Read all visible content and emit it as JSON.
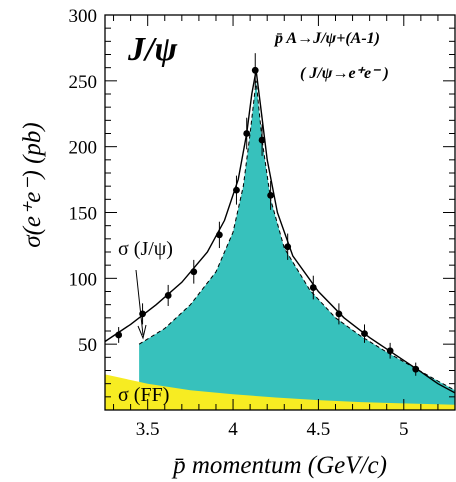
{
  "chart_data": {
    "type": "area",
    "plot_label": "J/ψ",
    "reaction_html": "p̄ A→J/ψ+(A-1)",
    "decay_label": "( J/ψ→e⁺e⁻ )",
    "ylabel": "σ(e⁺e⁻) (pb)",
    "xlabel": "p̄  momentum (GeV/c)",
    "xlim": [
      3.25,
      5.3
    ],
    "ylim": [
      0,
      300
    ],
    "xticks": [
      3.5,
      4,
      4.5,
      5
    ],
    "xtick_labels": [
      "3.5",
      "4",
      "4.5",
      "5"
    ],
    "yticks": [
      50,
      100,
      150,
      200,
      250,
      300
    ],
    "ytick_labels": [
      "50",
      "100",
      "150",
      "200",
      "250",
      "300"
    ],
    "annotations": {
      "sigma_jpsi": "σ (J/ψ)",
      "sigma_ff": "σ (FF)"
    },
    "series": [
      {
        "kind": "data_points_with_errors",
        "points": [
          {
            "x": 3.33,
            "y": 57,
            "err": 6
          },
          {
            "x": 3.47,
            "y": 73,
            "err": 8
          },
          {
            "x": 3.62,
            "y": 87,
            "err": 8
          },
          {
            "x": 3.77,
            "y": 105,
            "err": 9
          },
          {
            "x": 3.92,
            "y": 133,
            "err": 10
          },
          {
            "x": 4.02,
            "y": 167,
            "err": 11
          },
          {
            "x": 4.08,
            "y": 210,
            "err": 12
          },
          {
            "x": 4.13,
            "y": 258,
            "err": 13
          },
          {
            "x": 4.17,
            "y": 205,
            "err": 12
          },
          {
            "x": 4.22,
            "y": 163,
            "err": 11
          },
          {
            "x": 4.32,
            "y": 124,
            "err": 10
          },
          {
            "x": 4.47,
            "y": 93,
            "err": 9
          },
          {
            "x": 4.62,
            "y": 73,
            "err": 8
          },
          {
            "x": 4.77,
            "y": 58,
            "err": 7
          },
          {
            "x": 4.92,
            "y": 45,
            "err": 6
          },
          {
            "x": 5.07,
            "y": 31,
            "err": 5
          }
        ]
      },
      {
        "kind": "total_curve",
        "x": [
          3.25,
          3.4,
          3.55,
          3.7,
          3.85,
          3.95,
          4.03,
          4.08,
          4.11,
          4.135,
          4.16,
          4.2,
          4.26,
          4.35,
          4.5,
          4.65,
          4.8,
          4.95,
          5.1,
          5.2,
          5.3
        ],
        "y": [
          52,
          65,
          80,
          97,
          120,
          144,
          175,
          210,
          240,
          258,
          232,
          190,
          150,
          117,
          90,
          70,
          55,
          42,
          29,
          20,
          13
        ]
      },
      {
        "kind": "jpsi_area",
        "x": [
          3.45,
          3.6,
          3.75,
          3.9,
          4.0,
          4.06,
          4.1,
          4.135,
          4.17,
          4.22,
          4.3,
          4.45,
          4.6,
          4.75,
          4.9,
          5.05,
          5.2,
          5.3
        ],
        "y": [
          50,
          62,
          80,
          105,
          135,
          170,
          210,
          250,
          205,
          160,
          123,
          91,
          70,
          56,
          44,
          33,
          22,
          15
        ]
      },
      {
        "kind": "ff_background",
        "x": [
          3.25,
          3.5,
          3.75,
          4.0,
          4.25,
          4.5,
          4.75,
          5.0,
          5.3
        ],
        "y": [
          27,
          20,
          15,
          12,
          9.5,
          7.5,
          6,
          5,
          4
        ]
      }
    ],
    "colors": {
      "jpsi_fill": "#37c1bc",
      "ff_fill": "#f7ec22",
      "curve": "#000000"
    }
  }
}
